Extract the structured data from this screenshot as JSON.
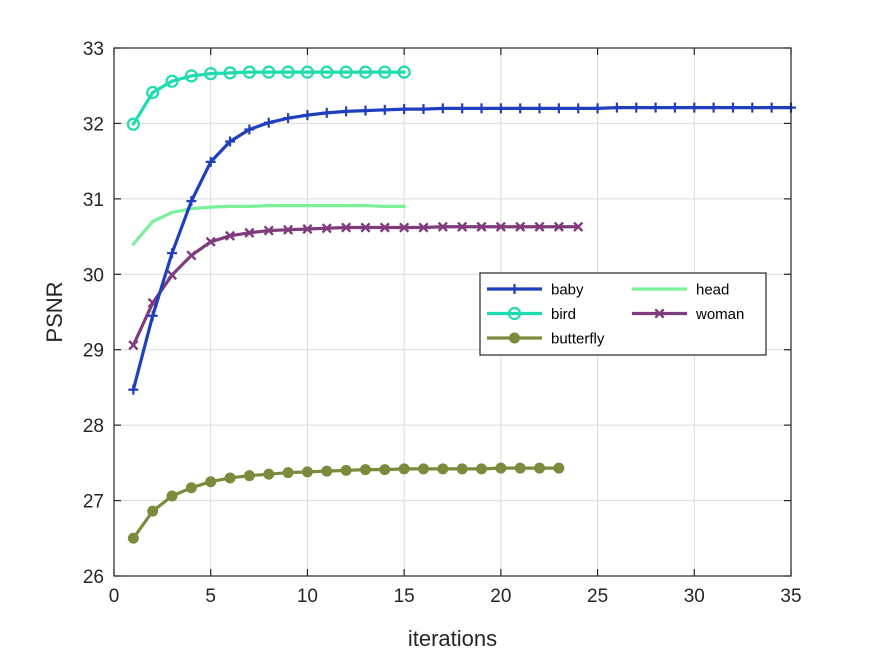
{
  "chart_data": {
    "type": "line",
    "title": "",
    "xlabel": "iterations",
    "ylabel": "PSNR",
    "xlim": [
      0,
      35
    ],
    "ylim": [
      26,
      33
    ],
    "xticks": [
      0,
      5,
      10,
      15,
      20,
      25,
      30,
      35
    ],
    "yticks": [
      26,
      27,
      28,
      29,
      30,
      31,
      32,
      33
    ],
    "grid": true,
    "legend_placement": "center-right",
    "series": [
      {
        "name": "baby",
        "color": "#1f3fbf",
        "marker": "plus",
        "x": [
          1,
          2,
          3,
          4,
          5,
          6,
          7,
          8,
          9,
          10,
          11,
          12,
          13,
          14,
          15,
          16,
          17,
          18,
          19,
          20,
          21,
          22,
          23,
          24,
          25,
          26,
          27,
          28,
          29,
          30,
          31,
          32,
          33,
          34,
          35
        ],
        "y": [
          28.47,
          29.45,
          30.28,
          30.97,
          31.49,
          31.76,
          31.92,
          32.01,
          32.07,
          32.11,
          32.14,
          32.16,
          32.17,
          32.18,
          32.19,
          32.19,
          32.2,
          32.2,
          32.2,
          32.2,
          32.2,
          32.2,
          32.2,
          32.2,
          32.2,
          32.21,
          32.21,
          32.21,
          32.21,
          32.21,
          32.21,
          32.21,
          32.21,
          32.21,
          32.21
        ]
      },
      {
        "name": "bird",
        "color": "#1fdcb0",
        "marker": "circle",
        "x": [
          1,
          2,
          3,
          4,
          5,
          6,
          7,
          8,
          9,
          10,
          11,
          12,
          13,
          14,
          15
        ],
        "y": [
          31.99,
          32.41,
          32.56,
          32.63,
          32.66,
          32.67,
          32.68,
          32.68,
          32.68,
          32.68,
          32.68,
          32.68,
          32.68,
          32.68,
          32.68
        ]
      },
      {
        "name": "butterfly",
        "color": "#7a8c3c",
        "marker": "dot",
        "x": [
          1,
          2,
          3,
          4,
          5,
          6,
          7,
          8,
          9,
          10,
          11,
          12,
          13,
          14,
          15,
          16,
          17,
          18,
          19,
          20,
          21,
          22,
          23
        ],
        "y": [
          26.5,
          26.86,
          27.06,
          27.17,
          27.25,
          27.3,
          27.33,
          27.35,
          27.37,
          27.38,
          27.39,
          27.4,
          27.41,
          27.41,
          27.42,
          27.42,
          27.42,
          27.42,
          27.42,
          27.43,
          27.43,
          27.43,
          27.43
        ]
      },
      {
        "name": "head",
        "color": "#7af09a",
        "marker": "none",
        "x": [
          1,
          2,
          3,
          4,
          5,
          6,
          7,
          8,
          9,
          10,
          11,
          12,
          13,
          14,
          15
        ],
        "y": [
          30.4,
          30.7,
          30.82,
          30.87,
          30.89,
          30.9,
          30.9,
          30.91,
          30.91,
          30.91,
          30.91,
          30.91,
          30.91,
          30.9,
          30.9
        ]
      },
      {
        "name": "woman",
        "color": "#7f3b7c",
        "marker": "x",
        "x": [
          1,
          2,
          3,
          4,
          5,
          6,
          7,
          8,
          9,
          10,
          11,
          12,
          13,
          14,
          15,
          16,
          17,
          18,
          19,
          20,
          21,
          22,
          23,
          24
        ],
        "y": [
          29.06,
          29.62,
          29.99,
          30.25,
          30.43,
          30.51,
          30.55,
          30.58,
          30.59,
          30.6,
          30.61,
          30.62,
          30.62,
          30.62,
          30.62,
          30.62,
          30.63,
          30.63,
          30.63,
          30.63,
          30.63,
          30.63,
          30.63,
          30.63
        ]
      }
    ],
    "legend_order": [
      "baby",
      "head",
      "bird",
      "woman",
      "butterfly"
    ],
    "grid_color": "#dcdcdc",
    "axis_color": "#262626"
  }
}
